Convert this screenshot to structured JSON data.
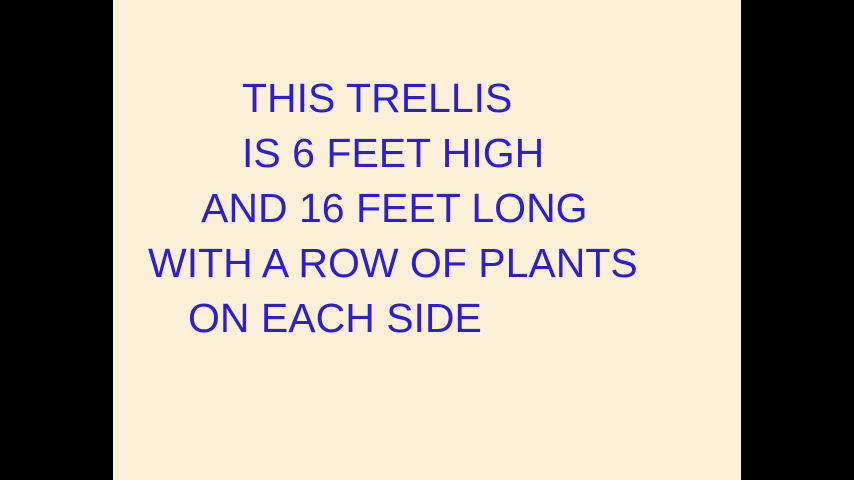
{
  "colors": {
    "background_bars": "#000000",
    "slide_background": "#FDF0D8",
    "text": "#2B1FD0"
  },
  "slide": {
    "lines": [
      "THIS TRELLIS",
      "IS 6 FEET HIGH",
      "AND 16 FEET LONG",
      "WITH A ROW OF PLANTS",
      "ON EACH SIDE"
    ]
  }
}
